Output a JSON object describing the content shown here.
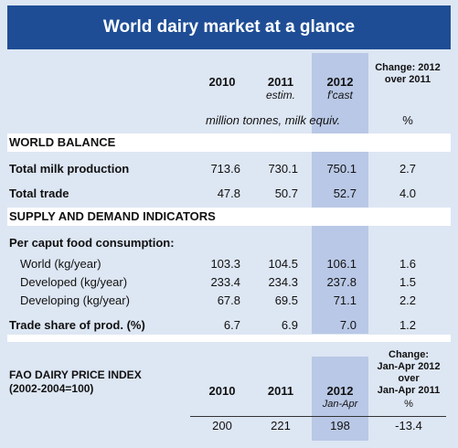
{
  "title": "World dairy market at a glance",
  "columns": {
    "y2010": "2010",
    "y2011": "2011",
    "y2011_note": "estim.",
    "y2012": "2012",
    "y2012_note": "f'cast",
    "change_line1": "Change: 2012",
    "change_line2": "over 2011"
  },
  "units": {
    "main": "million tonnes, milk equiv.",
    "pct": "%"
  },
  "world_balance": {
    "heading": "WORLD BALANCE",
    "rows": [
      {
        "label": "Total milk production",
        "v2010": "713.6",
        "v2011": "730.1",
        "v2012": "750.1",
        "change": "2.7"
      },
      {
        "label": "Total trade",
        "v2010": "47.8",
        "v2011": "50.7",
        "v2012": "52.7",
        "change": "4.0"
      }
    ]
  },
  "supply_demand": {
    "heading": "SUPPLY AND DEMAND INDICATORS",
    "subheading": "Per caput food consumption:",
    "rows": [
      {
        "label": "World (kg/year)",
        "v2010": "103.3",
        "v2011": "104.5",
        "v2012": "106.1",
        "change": "1.6"
      },
      {
        "label": "Developed (kg/year)",
        "v2010": "233.4",
        "v2011": "234.3",
        "v2012": "237.8",
        "change": "1.5"
      },
      {
        "label": "Developing (kg/year)",
        "v2010": "67.8",
        "v2011": "69.5",
        "v2012": "71.1",
        "change": "2.2"
      }
    ],
    "trade_share": {
      "label": "Trade share of prod. (%)",
      "v2010": "6.7",
      "v2011": "6.9",
      "v2012": "7.0",
      "change": "1.2"
    }
  },
  "price_index": {
    "heading": "FAO DAIRY PRICE INDEX",
    "subheading": "(2002-2004=100)",
    "y2010": "2010",
    "y2011": "2011",
    "y2012": "2012",
    "y2012_note": "Jan-Apr",
    "change_line1": "Change:",
    "change_line2": "Jan-Apr 2012",
    "change_line3": "over",
    "change_line4": "Jan-Apr 2011",
    "change_line5": "%",
    "v2010": "200",
    "v2011": "221",
    "v2012": "198",
    "change": "-13.4"
  }
}
